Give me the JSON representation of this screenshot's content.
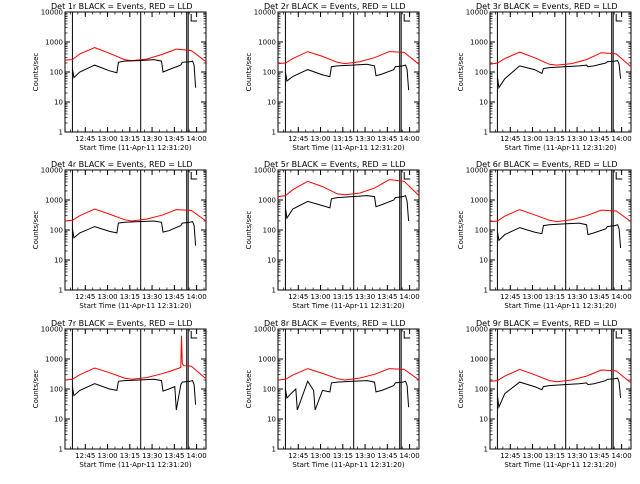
{
  "chart_data": [
    {
      "type": "line",
      "title": "Det 1r BLACK = Events, RED = LLD",
      "xlabel": "Start Time (11-Apr-11 12:31:20)",
      "ylabel": "Counts/sec",
      "yscale": "log",
      "ylim": [
        1,
        10000
      ],
      "xlim_min": [
        0,
        95
      ],
      "x_ticks": [
        "12:45",
        "13:00",
        "13:15",
        "13:30",
        "13:45",
        "14:00"
      ],
      "y_ticks": [
        "1",
        "10",
        "100",
        "1000",
        "10000"
      ],
      "markers_min": [
        5,
        51,
        82,
        83
      ],
      "legend": [
        "BLACK = Events",
        "RED = LLD"
      ],
      "series": [
        {
          "name": "LLD",
          "color": "#ff0000",
          "x": [
            0,
            5,
            10,
            20,
            30,
            40,
            45,
            55,
            65,
            75,
            85,
            95
          ],
          "values": [
            250,
            260,
            400,
            650,
            420,
            260,
            240,
            270,
            380,
            580,
            520,
            220
          ]
        },
        {
          "name": "Events",
          "color": "#000000",
          "x": [
            5,
            6,
            10,
            20,
            30,
            35,
            36,
            40,
            50,
            60,
            65,
            66,
            70,
            78,
            79,
            84,
            86,
            87,
            88
          ],
          "values": [
            130,
            65,
            100,
            170,
            110,
            95,
            210,
            230,
            240,
            260,
            230,
            100,
            120,
            170,
            210,
            220,
            230,
            170,
            30
          ]
        }
      ]
    },
    {
      "type": "line",
      "title": "Det 2r BLACK = Events, RED = LLD",
      "xlabel": "Start Time (11-Apr-11 12:31:20)",
      "ylabel": "Counts/sec",
      "yscale": "log",
      "ylim": [
        1,
        10000
      ],
      "xlim_min": [
        0,
        95
      ],
      "x_ticks": [
        "12:45",
        "13:00",
        "13:15",
        "13:30",
        "13:45",
        "14:00"
      ],
      "y_ticks": [
        "1",
        "10",
        "100",
        "1000",
        "10000"
      ],
      "markers_min": [
        5,
        51,
        82,
        83
      ],
      "legend": [
        "BLACK = Events",
        "RED = LLD"
      ],
      "series": [
        {
          "name": "LLD",
          "color": "#ff0000",
          "x": [
            0,
            5,
            10,
            20,
            30,
            40,
            45,
            55,
            65,
            75,
            85,
            95
          ],
          "values": [
            190,
            200,
            280,
            480,
            330,
            210,
            190,
            220,
            300,
            480,
            450,
            180
          ]
        },
        {
          "name": "Events",
          "color": "#000000",
          "x": [
            5,
            6,
            10,
            20,
            30,
            35,
            36,
            40,
            50,
            60,
            65,
            66,
            70,
            78,
            79,
            84,
            86,
            87,
            88
          ],
          "values": [
            100,
            50,
            70,
            120,
            80,
            70,
            150,
            160,
            170,
            180,
            160,
            75,
            85,
            120,
            150,
            160,
            170,
            120,
            25
          ]
        }
      ]
    },
    {
      "type": "line",
      "title": "Det 3r BLACK = Events, RED = LLD",
      "xlabel": "Start Time (11-Apr-11 12:31:20)",
      "ylabel": "Counts/sec",
      "yscale": "log",
      "ylim": [
        1,
        10000
      ],
      "xlim_min": [
        0,
        95
      ],
      "x_ticks": [
        "12:45",
        "13:00",
        "13:15",
        "13:30",
        "13:45",
        "14:00"
      ],
      "y_ticks": [
        "1",
        "10",
        "100",
        "1000",
        "10000"
      ],
      "markers_min": [
        5,
        51,
        82,
        83
      ],
      "legend": [
        "BLACK = Events",
        "RED = LLD"
      ],
      "series": [
        {
          "name": "LLD",
          "color": "#ff0000",
          "x": [
            0,
            5,
            10,
            20,
            30,
            40,
            45,
            55,
            65,
            75,
            85,
            95
          ],
          "values": [
            180,
            200,
            280,
            460,
            300,
            180,
            170,
            190,
            260,
            440,
            400,
            150
          ]
        },
        {
          "name": "Events",
          "color": "#000000",
          "x": [
            5,
            6,
            10,
            20,
            30,
            35,
            36,
            40,
            50,
            60,
            65,
            66,
            70,
            78,
            79,
            84,
            86,
            87,
            88
          ],
          "values": [
            70,
            30,
            60,
            160,
            120,
            90,
            130,
            140,
            150,
            160,
            170,
            150,
            160,
            200,
            220,
            230,
            240,
            180,
            60
          ]
        }
      ]
    },
    {
      "type": "line",
      "title": "Det 4r BLACK = Events, RED = LLD",
      "xlabel": "Start Time (11-Apr-11 12:31:20)",
      "ylabel": "Counts/sec",
      "yscale": "log",
      "ylim": [
        1,
        10000
      ],
      "xlim_min": [
        0,
        95
      ],
      "x_ticks": [
        "12:45",
        "13:00",
        "13:15",
        "13:30",
        "13:45",
        "14:00"
      ],
      "y_ticks": [
        "1",
        "10",
        "100",
        "1000",
        "10000"
      ],
      "markers_min": [
        5,
        51,
        82,
        83
      ],
      "legend": [
        "BLACK = Events",
        "RED = LLD"
      ],
      "series": [
        {
          "name": "LLD",
          "color": "#ff0000",
          "x": [
            0,
            5,
            10,
            20,
            30,
            40,
            45,
            55,
            65,
            75,
            85,
            95
          ],
          "values": [
            200,
            210,
            300,
            500,
            340,
            220,
            200,
            230,
            310,
            480,
            450,
            200
          ]
        },
        {
          "name": "Events",
          "color": "#000000",
          "x": [
            5,
            6,
            10,
            20,
            30,
            35,
            36,
            40,
            50,
            60,
            65,
            66,
            70,
            78,
            79,
            84,
            86,
            87,
            88
          ],
          "values": [
            110,
            55,
            80,
            130,
            90,
            80,
            170,
            180,
            190,
            200,
            180,
            85,
            95,
            140,
            170,
            180,
            190,
            140,
            30
          ]
        }
      ]
    },
    {
      "type": "line",
      "title": "Det 5r BLACK = Events, RED = LLD",
      "xlabel": "Start Time (11-Apr-11 12:31:20)",
      "ylabel": "Counts/sec",
      "yscale": "log",
      "ylim": [
        1,
        10000
      ],
      "xlim_min": [
        0,
        95
      ],
      "x_ticks": [
        "12:45",
        "13:00",
        "13:15",
        "13:30",
        "13:45",
        "14:00"
      ],
      "y_ticks": [
        "1",
        "10",
        "100",
        "1000",
        "10000"
      ],
      "markers_min": [
        5,
        51,
        82,
        83
      ],
      "legend": [
        "BLACK = Events",
        "RED = LLD"
      ],
      "series": [
        {
          "name": "LLD",
          "color": "#ff0000",
          "x": [
            0,
            5,
            10,
            20,
            30,
            40,
            45,
            55,
            65,
            75,
            85,
            95
          ],
          "values": [
            1300,
            1400,
            2200,
            4200,
            2800,
            1600,
            1500,
            1700,
            2500,
            4800,
            4200,
            1400
          ]
        },
        {
          "name": "Events",
          "color": "#000000",
          "x": [
            5,
            6,
            10,
            20,
            30,
            35,
            36,
            40,
            50,
            60,
            65,
            66,
            70,
            78,
            79,
            84,
            86,
            87,
            88
          ],
          "values": [
            550,
            250,
            500,
            900,
            650,
            550,
            1100,
            1200,
            1300,
            1400,
            1300,
            600,
            700,
            1000,
            1200,
            1300,
            1400,
            900,
            200
          ]
        }
      ]
    },
    {
      "type": "line",
      "title": "Det 6r BLACK = Events, RED = LLD",
      "xlabel": "Start Time (11-Apr-11 12:31:20)",
      "ylabel": "Counts/sec",
      "yscale": "log",
      "ylim": [
        1,
        10000
      ],
      "xlim_min": [
        0,
        95
      ],
      "x_ticks": [
        "12:45",
        "13:00",
        "13:15",
        "13:30",
        "13:45",
        "14:00"
      ],
      "y_ticks": [
        "1",
        "10",
        "100",
        "1000",
        "10000"
      ],
      "markers_min": [
        5,
        51,
        82,
        83
      ],
      "legend": [
        "BLACK = Events",
        "RED = LLD"
      ],
      "series": [
        {
          "name": "LLD",
          "color": "#ff0000",
          "x": [
            0,
            5,
            10,
            20,
            30,
            40,
            45,
            55,
            65,
            75,
            85,
            95
          ],
          "values": [
            190,
            200,
            290,
            480,
            320,
            210,
            190,
            220,
            300,
            460,
            430,
            190
          ]
        },
        {
          "name": "Events",
          "color": "#000000",
          "x": [
            5,
            6,
            10,
            20,
            30,
            35,
            36,
            40,
            50,
            60,
            65,
            66,
            70,
            78,
            79,
            84,
            86,
            87,
            88
          ],
          "values": [
            90,
            45,
            70,
            120,
            85,
            75,
            140,
            150,
            160,
            170,
            150,
            70,
            80,
            110,
            130,
            140,
            150,
            110,
            25
          ]
        }
      ]
    },
    {
      "type": "line",
      "title": "Det 7r BLACK = Events, RED = LLD",
      "xlabel": "Start Time (11-Apr-11 12:31:20)",
      "ylabel": "Counts/sec",
      "yscale": "log",
      "ylim": [
        1,
        10000
      ],
      "xlim_min": [
        0,
        95
      ],
      "x_ticks": [
        "12:45",
        "13:00",
        "13:15",
        "13:30",
        "13:45",
        "14:00"
      ],
      "y_ticks": [
        "1",
        "10",
        "100",
        "1000",
        "10000"
      ],
      "markers_min": [
        5,
        51,
        82,
        83
      ],
      "legend": [
        "BLACK = Events",
        "RED = LLD"
      ],
      "series": [
        {
          "name": "LLD",
          "color": "#ff0000",
          "x": [
            0,
            5,
            10,
            20,
            30,
            40,
            45,
            55,
            65,
            70,
            78,
            78.5,
            79,
            80,
            85,
            95
          ],
          "values": [
            200,
            210,
            300,
            500,
            350,
            230,
            210,
            240,
            320,
            380,
            520,
            6000,
            700,
            600,
            580,
            220
          ]
        },
        {
          "name": "Events",
          "color": "#000000",
          "x": [
            5,
            6,
            10,
            20,
            30,
            35,
            36,
            40,
            50,
            60,
            65,
            66,
            70,
            74,
            75,
            78,
            79,
            84,
            86,
            87,
            88
          ],
          "values": [
            120,
            60,
            90,
            150,
            100,
            90,
            180,
            190,
            200,
            210,
            190,
            85,
            100,
            120,
            20,
            140,
            170,
            180,
            190,
            140,
            30
          ]
        }
      ]
    },
    {
      "type": "line",
      "title": "Det 8r BLACK = Events, RED = LLD",
      "xlabel": "Start Time (11-Apr-11 12:31:20)",
      "ylabel": "Counts/sec",
      "yscale": "log",
      "ylim": [
        1,
        10000
      ],
      "xlim_min": [
        0,
        95
      ],
      "x_ticks": [
        "12:45",
        "13:00",
        "13:15",
        "13:30",
        "13:45",
        "14:00"
      ],
      "y_ticks": [
        "1",
        "10",
        "100",
        "1000",
        "10000"
      ],
      "markers_min": [
        5,
        51,
        82,
        83
      ],
      "legend": [
        "BLACK = Events",
        "RED = LLD"
      ],
      "series": [
        {
          "name": "LLD",
          "color": "#ff0000",
          "x": [
            0,
            5,
            10,
            20,
            30,
            40,
            45,
            55,
            65,
            75,
            85,
            95
          ],
          "values": [
            200,
            210,
            290,
            480,
            330,
            220,
            200,
            230,
            310,
            480,
            450,
            200
          ]
        },
        {
          "name": "Events",
          "color": "#000000",
          "x": [
            5,
            6,
            10,
            12,
            13,
            20,
            24,
            25,
            30,
            35,
            36,
            40,
            50,
            60,
            65,
            66,
            70,
            78,
            79,
            84,
            86,
            87,
            88
          ],
          "values": [
            100,
            50,
            80,
            100,
            20,
            180,
            90,
            20,
            90,
            80,
            160,
            170,
            180,
            190,
            170,
            80,
            90,
            130,
            160,
            170,
            180,
            130,
            25
          ]
        }
      ]
    },
    {
      "type": "line",
      "title": "Det 9r BLACK = Events, RED = LLD",
      "xlabel": "Start Time (11-Apr-11 12:31:20)",
      "ylabel": "Counts/sec",
      "yscale": "log",
      "ylim": [
        1,
        10000
      ],
      "xlim_min": [
        0,
        95
      ],
      "x_ticks": [
        "12:45",
        "13:00",
        "13:15",
        "13:30",
        "13:45",
        "14:00"
      ],
      "y_ticks": [
        "1",
        "10",
        "100",
        "1000",
        "10000"
      ],
      "markers_min": [
        5,
        51,
        82,
        83
      ],
      "legend": [
        "BLACK = Events",
        "RED = LLD"
      ],
      "series": [
        {
          "name": "LLD",
          "color": "#ff0000",
          "x": [
            0,
            5,
            10,
            20,
            30,
            40,
            45,
            55,
            65,
            75,
            85,
            95
          ],
          "values": [
            180,
            190,
            270,
            450,
            300,
            190,
            175,
            200,
            270,
            430,
            400,
            160
          ]
        },
        {
          "name": "Events",
          "color": "#000000",
          "x": [
            5,
            6,
            10,
            20,
            30,
            35,
            36,
            40,
            50,
            60,
            65,
            66,
            70,
            78,
            79,
            84,
            86,
            87,
            88
          ],
          "values": [
            60,
            25,
            70,
            170,
            120,
            95,
            120,
            130,
            140,
            150,
            160,
            140,
            150,
            190,
            210,
            220,
            230,
            170,
            50
          ]
        }
      ]
    }
  ]
}
